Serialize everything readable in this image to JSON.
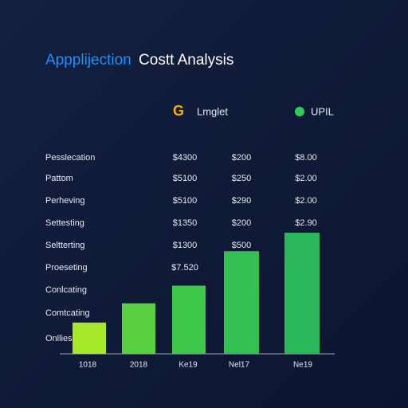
{
  "chart_data": {
    "type": "bar",
    "title_parts": [
      "Appplijection",
      "Costt Analysis"
    ],
    "legend_items": [
      "Lmglet",
      "UPIL"
    ],
    "legend_icon": "G",
    "categories": [
      "1018",
      "2018",
      "Ke19",
      "Nel17",
      "Ne19"
    ],
    "values": [
      39,
      63,
      85,
      128,
      151
    ],
    "colors": [
      "#a6e82a",
      "#58d040",
      "#3ec84a",
      "#32c052",
      "#2ab85a"
    ],
    "ylim": [
      0,
      160
    ]
  },
  "table": {
    "rows": [
      [
        "Pesslecation",
        "$4300",
        "$200",
        "$8.00"
      ],
      [
        "Pattom",
        "$5100",
        "$250",
        "$2.00"
      ],
      [
        "Perheving",
        "$5100",
        "$290",
        "$2.00"
      ],
      [
        "Settesting",
        "$1350",
        "$200",
        "$2.90"
      ],
      [
        "Seltterting",
        "$1300",
        "$500"
      ],
      [
        "Proeseting",
        "$7.520"
      ],
      [
        "Conlcating"
      ],
      [
        "Comtcating"
      ],
      [
        "Onllies"
      ]
    ]
  }
}
